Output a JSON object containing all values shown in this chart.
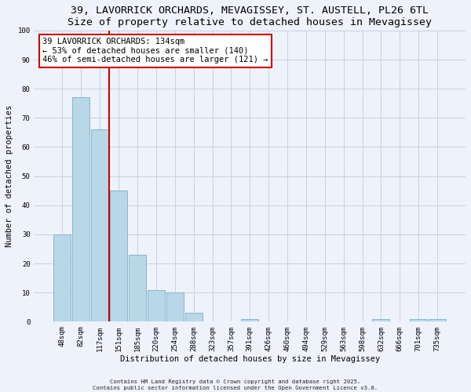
{
  "title": "39, LAVORRICK ORCHARDS, MEVAGISSEY, ST. AUSTELL, PL26 6TL",
  "subtitle": "Size of property relative to detached houses in Mevagissey",
  "xlabel": "Distribution of detached houses by size in Mevagissey",
  "ylabel": "Number of detached properties",
  "bar_labels": [
    "48sqm",
    "82sqm",
    "117sqm",
    "151sqm",
    "185sqm",
    "220sqm",
    "254sqm",
    "288sqm",
    "323sqm",
    "357sqm",
    "391sqm",
    "426sqm",
    "460sqm",
    "494sqm",
    "529sqm",
    "563sqm",
    "598sqm",
    "632sqm",
    "666sqm",
    "701sqm",
    "735sqm"
  ],
  "bar_values": [
    30,
    77,
    66,
    45,
    23,
    11,
    10,
    3,
    0,
    0,
    1,
    0,
    0,
    0,
    0,
    0,
    0,
    1,
    0,
    1,
    1
  ],
  "bar_color": "#b8d8e8",
  "bar_edge_color": "#7aaec8",
  "vline_color": "#cc0000",
  "annotation_title": "39 LAVORRICK ORCHARDS: 134sqm",
  "annotation_line1": "← 53% of detached houses are smaller (140)",
  "annotation_line2": "46% of semi-detached houses are larger (121) →",
  "annotation_box_color": "white",
  "annotation_box_edge": "#cc0000",
  "ylim": [
    0,
    100
  ],
  "yticks": [
    0,
    10,
    20,
    30,
    40,
    50,
    60,
    70,
    80,
    90,
    100
  ],
  "footer1": "Contains HM Land Registry data © Crown copyright and database right 2025.",
  "footer2": "Contains public sector information licensed under the Open Government Licence v3.0.",
  "background_color": "#eef2fb",
  "grid_color": "#c8d0e0",
  "title_fontsize": 9.5,
  "subtitle_fontsize": 8.5,
  "axis_label_fontsize": 7.5,
  "tick_fontsize": 6.5
}
